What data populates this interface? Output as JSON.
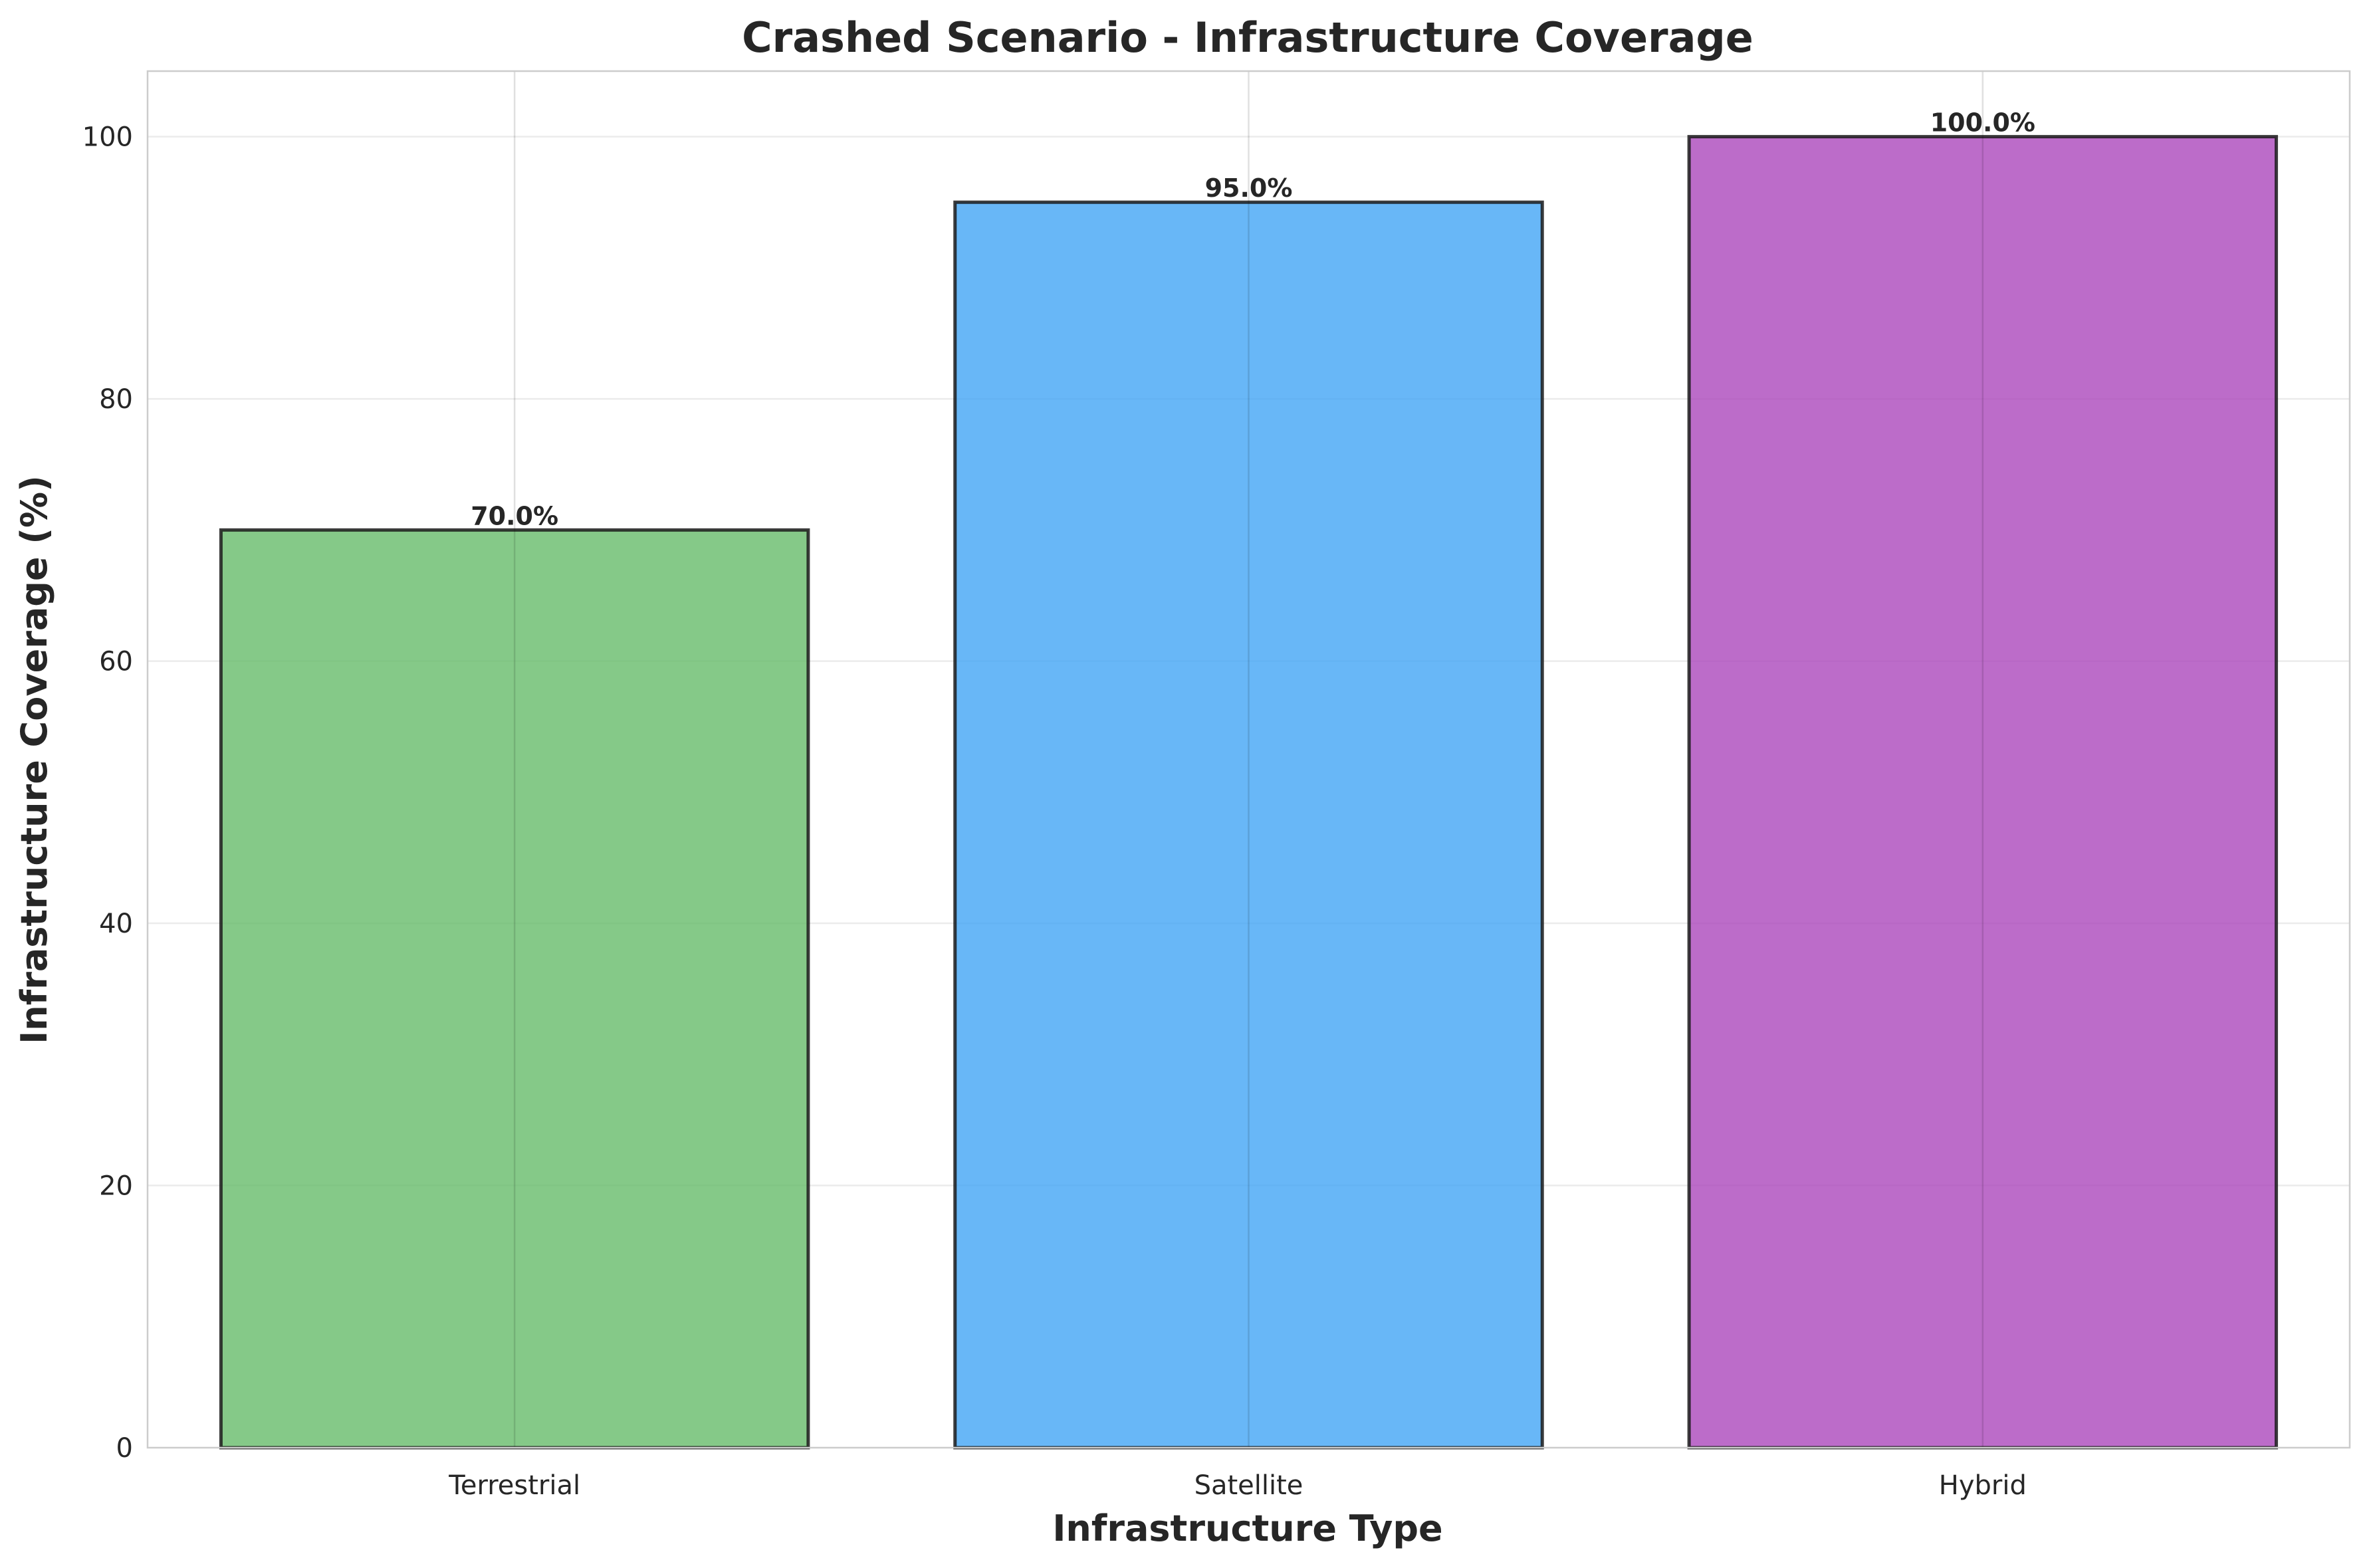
{
  "chart_data": {
    "type": "bar",
    "title": "Crashed Scenario - Infrastructure Coverage",
    "xlabel": "Infrastructure Type",
    "ylabel": "Infrastructure Coverage (%)",
    "categories": [
      "Terrestrial",
      "Satellite",
      "Hybrid"
    ],
    "values": [
      70.0,
      95.0,
      100.0
    ],
    "value_labels": [
      "70.0%",
      "95.0%",
      "100.0%"
    ],
    "colors": [
      "#66bb6a",
      "#42a5f5",
      "#ab47bc"
    ],
    "ylim": [
      0,
      105
    ],
    "yticks": [
      0,
      20,
      40,
      60,
      80,
      100
    ],
    "grid": true,
    "legend": "none"
  }
}
